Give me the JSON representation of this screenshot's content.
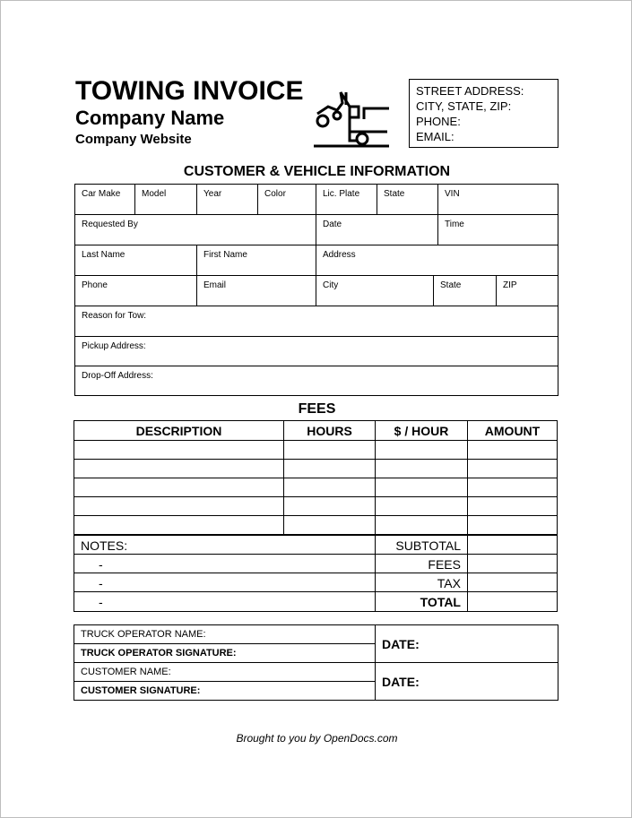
{
  "header": {
    "title": "TOWING INVOICE",
    "company_name": "Company Name",
    "company_website": "Company Website",
    "icon": "tow-truck-icon"
  },
  "contact": {
    "street": "STREET ADDRESS:",
    "city": "CITY, STATE, ZIP:",
    "phone": "PHONE:",
    "email": "EMAIL:"
  },
  "customer": {
    "title": "CUSTOMER & VEHICLE INFORMATION",
    "car_make": "Car Make",
    "model": "Model",
    "year": "Year",
    "color": "Color",
    "plate": "Lic. Plate",
    "state": "State",
    "vin": "VIN",
    "requested_by": "Requested By",
    "date": "Date",
    "time": "Time",
    "last_name": "Last Name",
    "first_name": "First Name",
    "address": "Address",
    "phone": "Phone",
    "email": "Email",
    "city": "City",
    "state2": "State",
    "zip": "ZIP",
    "reason": "Reason for Tow:",
    "pickup": "Pickup Address:",
    "dropoff": "Drop-Off Address:"
  },
  "fees": {
    "title": "FEES",
    "columns": [
      "DESCRIPTION",
      "HOURS",
      "$ / HOUR",
      "AMOUNT"
    ],
    "notes": "NOTES:",
    "dash": "-",
    "subtotal": "SUBTOTAL",
    "fees": "FEES",
    "tax": "TAX",
    "total": "TOTAL"
  },
  "signatures": {
    "operator_name": "TRUCK OPERATOR NAME:",
    "operator_signature": "TRUCK OPERATOR SIGNATURE:",
    "customer_name": "CUSTOMER NAME:",
    "customer_signature": "CUSTOMER SIGNATURE:",
    "date": "DATE:"
  },
  "footer": "Brought to you by OpenDocs.com"
}
